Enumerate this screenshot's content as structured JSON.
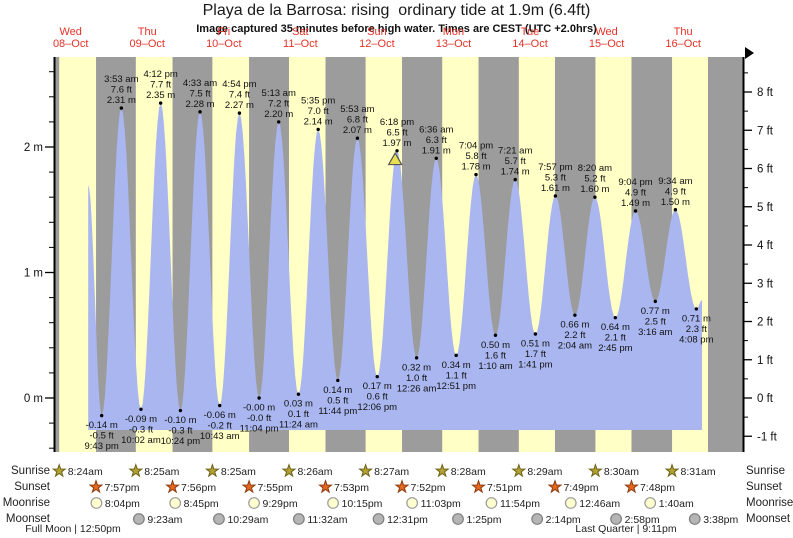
{
  "title": "Playa de la Barrosa: rising  ordinary tide at 1.9m (6.4ft)",
  "subtitle": "Image captured 35 minutes before high water. Times are CEST (UTC +2.0hrs)",
  "chart_data": {
    "type": "area",
    "title": "Playa de la Barrosa tide curve",
    "ylabel_left": "meters",
    "ylabel_right": "feet",
    "y_axis_m_ticks": [
      0,
      1,
      2
    ],
    "y_axis_ft_ticks": [
      -1,
      0,
      1,
      2,
      3,
      4,
      5,
      6,
      7,
      8
    ],
    "y_axis_m_labels": [
      "0 m",
      "1 m",
      "2 m"
    ],
    "y_axis_ft_labels": [
      "-1 ft",
      "0 ft",
      "1 ft",
      "2 ft",
      "3 ft",
      "4 ft",
      "5 ft",
      "6 ft",
      "7 ft",
      "8 ft"
    ],
    "days": [
      {
        "weekday": "Wed",
        "date": "08–Oct",
        "sunrise": "8:24am",
        "sunset": "7:57pm"
      },
      {
        "weekday": "Thu",
        "date": "09–Oct",
        "sunrise": "8:25am",
        "sunset": "7:56pm"
      },
      {
        "weekday": "Fri",
        "date": "10–Oct",
        "sunrise": "8:25am",
        "sunset": "7:55pm"
      },
      {
        "weekday": "Sat",
        "date": "11–Oct",
        "sunrise": "8:26am",
        "sunset": "7:53pm"
      },
      {
        "weekday": "Sun",
        "date": "12–Oct",
        "sunrise": "8:27am",
        "sunset": "7:52pm"
      },
      {
        "weekday": "Mon",
        "date": "13–Oct",
        "sunrise": "8:28am",
        "sunset": "7:51pm"
      },
      {
        "weekday": "Tue",
        "date": "14–Oct",
        "sunrise": "8:29am",
        "sunset": "7:49pm"
      },
      {
        "weekday": "Wed",
        "date": "15–Oct",
        "sunrise": "8:30am",
        "sunset": "7:48pm"
      },
      {
        "weekday": "Thu",
        "date": "16–Oct",
        "sunrise": "8:31am",
        "sunset": null
      }
    ],
    "tide_extremes": [
      {
        "day": 0,
        "time": "9:43 pm",
        "type": "L",
        "m_val": -0.14,
        "m_label": "-0.14 m",
        "ft_label": "-0.5 ft"
      },
      {
        "day": 1,
        "time": "3:53 am",
        "type": "H",
        "m_val": 2.31,
        "m_label": "2.31 m",
        "ft_label": "7.6 ft"
      },
      {
        "day": 1,
        "time": "10:02 am",
        "type": "L",
        "m_val": -0.09,
        "m_label": "-0.09 m",
        "ft_label": "-0.3 ft"
      },
      {
        "day": 1,
        "time": "4:12 pm",
        "type": "H",
        "m_val": 2.35,
        "m_label": "2.35 m",
        "ft_label": "7.7 ft"
      },
      {
        "day": 1,
        "time": "10:24 pm",
        "type": "L",
        "m_val": -0.1,
        "m_label": "-0.10 m",
        "ft_label": "-0.3 ft"
      },
      {
        "day": 2,
        "time": "4:33 am",
        "type": "H",
        "m_val": 2.28,
        "m_label": "2.28 m",
        "ft_label": "7.5 ft"
      },
      {
        "day": 2,
        "time": "10:43 am",
        "type": "L",
        "m_val": -0.06,
        "m_label": "-0.06 m",
        "ft_label": "-0.2 ft"
      },
      {
        "day": 2,
        "time": "4:54 pm",
        "type": "H",
        "m_val": 2.27,
        "m_label": "2.27 m",
        "ft_label": "7.4 ft"
      },
      {
        "day": 2,
        "time": "11:04 pm",
        "type": "L",
        "m_val": 0.0,
        "m_label": "-0.00 m",
        "ft_label": "-0.0 ft"
      },
      {
        "day": 3,
        "time": "5:13 am",
        "type": "H",
        "m_val": 2.2,
        "m_label": "2.20 m",
        "ft_label": "7.2 ft"
      },
      {
        "day": 3,
        "time": "11:24 am",
        "type": "L",
        "m_val": 0.03,
        "m_label": "0.03 m",
        "ft_label": "0.1 ft"
      },
      {
        "day": 3,
        "time": "5:35 pm",
        "type": "H",
        "m_val": 2.14,
        "m_label": "2.14 m",
        "ft_label": "7.0 ft"
      },
      {
        "day": 3,
        "time": "11:44 pm",
        "type": "L",
        "m_val": 0.14,
        "m_label": "0.14 m",
        "ft_label": "0.5 ft"
      },
      {
        "day": 4,
        "time": "5:53 am",
        "type": "H",
        "m_val": 2.07,
        "m_label": "2.07 m",
        "ft_label": "6.8 ft"
      },
      {
        "day": 4,
        "time": "12:06 pm",
        "type": "L",
        "m_val": 0.17,
        "m_label": "0.17 m",
        "ft_label": "0.6 ft"
      },
      {
        "day": 4,
        "time": "6:18 pm",
        "type": "H",
        "m_val": 1.97,
        "m_label": "1.97 m",
        "ft_label": "6.5 ft"
      },
      {
        "day": 5,
        "time": "12:26 am",
        "type": "L",
        "m_val": 0.32,
        "m_label": "0.32 m",
        "ft_label": "1.0 ft"
      },
      {
        "day": 5,
        "time": "6:36 am",
        "type": "H",
        "m_val": 1.91,
        "m_label": "1.91 m",
        "ft_label": "6.3 ft"
      },
      {
        "day": 5,
        "time": "12:51 pm",
        "type": "L",
        "m_val": 0.34,
        "m_label": "0.34 m",
        "ft_label": "1.1 ft"
      },
      {
        "day": 5,
        "time": "7:04 pm",
        "type": "H",
        "m_val": 1.78,
        "m_label": "1.78 m",
        "ft_label": "5.8 ft"
      },
      {
        "day": 6,
        "time": "1:10 am",
        "type": "L",
        "m_val": 0.5,
        "m_label": "0.50 m",
        "ft_label": "1.6 ft"
      },
      {
        "day": 6,
        "time": "7:21 am",
        "type": "H",
        "m_val": 1.74,
        "m_label": "1.74 m",
        "ft_label": "5.7 ft"
      },
      {
        "day": 6,
        "time": "1:41 pm",
        "type": "L",
        "m_val": 0.51,
        "m_label": "0.51 m",
        "ft_label": "1.7 ft"
      },
      {
        "day": 6,
        "time": "7:57 pm",
        "type": "H",
        "m_val": 1.61,
        "m_label": "1.61 m",
        "ft_label": "5.3 ft"
      },
      {
        "day": 7,
        "time": "2:04 am",
        "type": "L",
        "m_val": 0.66,
        "m_label": "0.66 m",
        "ft_label": "2.2 ft"
      },
      {
        "day": 7,
        "time": "8:20 am",
        "type": "H",
        "m_val": 1.6,
        "m_label": "1.60 m",
        "ft_label": "5.2 ft"
      },
      {
        "day": 7,
        "time": "2:45 pm",
        "type": "L",
        "m_val": 0.64,
        "m_label": "0.64 m",
        "ft_label": "2.1 ft"
      },
      {
        "day": 7,
        "time": "9:04 pm",
        "type": "H",
        "m_val": 1.49,
        "m_label": "1.49 m",
        "ft_label": "4.9 ft"
      },
      {
        "day": 8,
        "time": "3:16 am",
        "type": "L",
        "m_val": 0.77,
        "m_label": "0.77 m",
        "ft_label": "2.5 ft"
      },
      {
        "day": 8,
        "time": "9:34 am",
        "type": "H",
        "m_val": 1.5,
        "m_label": "1.50 m",
        "ft_label": "4.9 ft"
      },
      {
        "day": 8,
        "time": "4:08 pm",
        "type": "L",
        "m_val": 0.71,
        "m_label": "0.71 m",
        "ft_label": "2.3 ft"
      }
    ],
    "current_marker": {
      "at_high_day": 4,
      "at_high_time": "6:18 pm",
      "minutes_before_high": 35,
      "height_m": 1.9
    }
  },
  "astro": {
    "row_labels": [
      "Sunrise",
      "Sunset",
      "Moonrise",
      "Moonset"
    ],
    "moonrise_events": [
      {
        "day": 0,
        "time": "8:04pm"
      },
      {
        "day": 1,
        "time": "8:45pm"
      },
      {
        "day": 2,
        "time": "9:29pm"
      },
      {
        "day": 3,
        "time": "10:15pm"
      },
      {
        "day": 4,
        "time": "11:03pm"
      },
      {
        "day": 5,
        "time": "11:54pm"
      },
      {
        "day": 7,
        "time": "12:46am"
      },
      {
        "day": 8,
        "time": "1:40am"
      }
    ],
    "moonset_events": [
      {
        "day": 1,
        "time": "9:23am"
      },
      {
        "day": 2,
        "time": "10:29am"
      },
      {
        "day": 3,
        "time": "11:32am"
      },
      {
        "day": 4,
        "time": "12:31pm"
      },
      {
        "day": 5,
        "time": "1:25pm"
      },
      {
        "day": 6,
        "time": "2:14pm"
      },
      {
        "day": 7,
        "time": "2:58pm"
      },
      {
        "day": 8,
        "time": "3:38pm"
      }
    ],
    "moon_phases": [
      {
        "label": "Full Moon | 12:50pm",
        "day": 0,
        "time": "12:50pm"
      },
      {
        "label": "Last Quarter | 9:11pm",
        "day": 7,
        "time": "9:11pm"
      }
    ]
  },
  "colors": {
    "day_band": "#ffffc6",
    "night_band": "#9c9c9c",
    "tide_fill": "#a9b6ef",
    "date_label_red": "#e53228",
    "marker_yellow": "#e8e050",
    "sunrise_star": "#b3a133",
    "sunset_star": "#e4681f",
    "moonrise_circle": "#ffffd0",
    "moonset_circle": "#b5b5b5"
  }
}
